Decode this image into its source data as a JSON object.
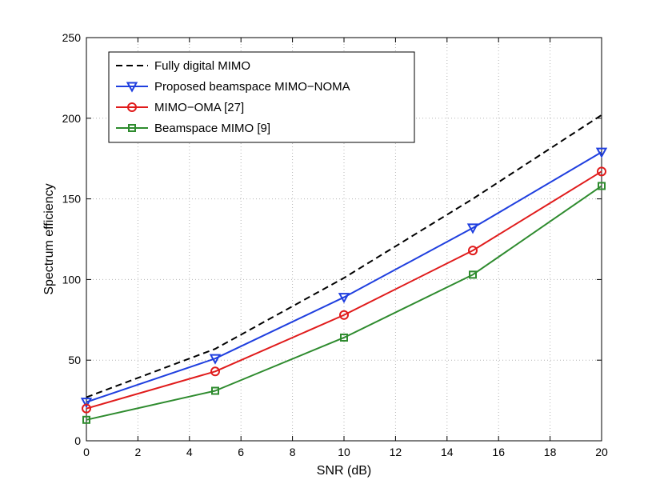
{
  "chart_data": {
    "type": "line",
    "title": "",
    "xlabel": "SNR (dB)",
    "ylabel": "Spectrum efficiency",
    "xlim": [
      0,
      20
    ],
    "ylim": [
      0,
      250
    ],
    "xticks": [
      0,
      2,
      4,
      6,
      8,
      10,
      12,
      14,
      16,
      18,
      20
    ],
    "yticks": [
      0,
      50,
      100,
      150,
      200,
      250
    ],
    "grid": true,
    "legend_position": "top-left",
    "series": [
      {
        "name": "Fully digital MIMO",
        "x": [
          0,
          5,
          10,
          15,
          20
        ],
        "y": [
          27,
          57,
          101,
          150,
          202
        ],
        "color": "#000000",
        "line_style": "dashed",
        "marker": "none"
      },
      {
        "name": "Proposed beamspace MIMO−NOMA",
        "x": [
          0,
          5,
          10,
          15,
          20
        ],
        "y": [
          24,
          51,
          89,
          132,
          179
        ],
        "color": "#1f3fdf",
        "line_style": "solid",
        "marker": "triangle-down"
      },
      {
        "name": "MIMO−OMA [27]",
        "x": [
          0,
          5,
          10,
          15,
          20
        ],
        "y": [
          20,
          43,
          78,
          118,
          167
        ],
        "color": "#e01b1b",
        "line_style": "solid",
        "marker": "circle"
      },
      {
        "name": "Beamspace MIMO [9]",
        "x": [
          0,
          5,
          10,
          15,
          20
        ],
        "y": [
          13,
          31,
          64,
          103,
          158
        ],
        "color": "#2e8b2e",
        "line_style": "solid",
        "marker": "square"
      }
    ]
  }
}
